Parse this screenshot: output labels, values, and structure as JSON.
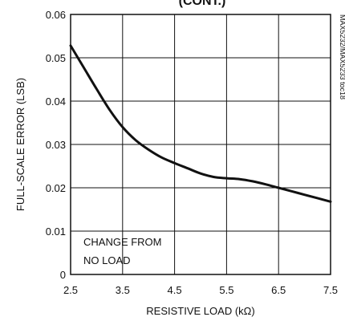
{
  "chart_data": {
    "type": "line",
    "title": "(CONT.)",
    "xlabel": "RESISTIVE LOAD (kΩ)",
    "ylabel": "FULL-SCALE ERROR (LSB)",
    "side_label": "MAX5232/MAX5233 toc18",
    "annotation": [
      "CHANGE FROM",
      "NO LOAD"
    ],
    "xlim": [
      2.5,
      7.5
    ],
    "ylim": [
      0,
      0.06
    ],
    "x_ticks": [
      "2.5",
      "3.5",
      "4.5",
      "5.5",
      "6.5",
      "7.5"
    ],
    "y_ticks": [
      "0",
      "0.01",
      "0.02",
      "0.03",
      "0.04",
      "0.05",
      "0.06"
    ],
    "grid": true,
    "series": [
      {
        "x": [
          2.5,
          2.75,
          3.0,
          3.25,
          3.5,
          3.75,
          4.0,
          4.25,
          4.5,
          4.75,
          5.0,
          5.25,
          5.5,
          5.75,
          6.0,
          6.25,
          6.5,
          6.75,
          7.0,
          7.25,
          7.5
        ],
        "y": [
          0.0528,
          0.0478,
          0.0428,
          0.038,
          0.034,
          0.031,
          0.0288,
          0.027,
          0.0257,
          0.0245,
          0.0233,
          0.0225,
          0.0222,
          0.022,
          0.0215,
          0.0208,
          0.02,
          0.0192,
          0.0184,
          0.0176,
          0.0168
        ]
      }
    ]
  }
}
